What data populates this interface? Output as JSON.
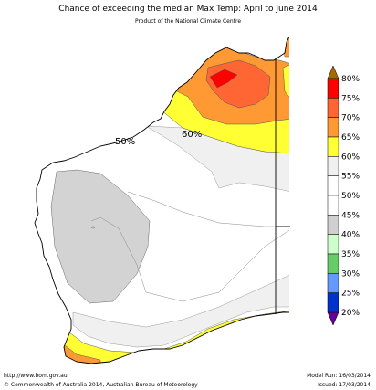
{
  "title": "Chance of exceeding the median Max Temp: April to June 2014",
  "subtitle": "Product of the National Climate Centre",
  "contour_labels": [
    "50%",
    "60%"
  ],
  "legend": {
    "bins": [
      {
        "label": "80%",
        "color": "#d90000"
      },
      {
        "label": "75%",
        "color": "#ff0000"
      },
      {
        "label": "70%",
        "color": "#ff6633"
      },
      {
        "label": "65%",
        "color": "#ff9933"
      },
      {
        "label": "60%",
        "color": "#ffff33"
      },
      {
        "label": "55%",
        "color": "#f0f0f0"
      },
      {
        "label": "50%",
        "color": "#ffffff"
      },
      {
        "label": "45%",
        "color": "#ffffff"
      },
      {
        "label": "40%",
        "color": "#d0d0d0"
      },
      {
        "label": "35%",
        "color": "#ccffcc"
      },
      {
        "label": "30%",
        "color": "#66cc66"
      },
      {
        "label": "25%",
        "color": "#6699ff"
      },
      {
        "label": "20%",
        "color": "#0033cc"
      }
    ],
    "top_arrow_color": "#aa6600",
    "bottom_arrow_color": "#660099"
  },
  "footer": {
    "url": "http://www.bom.gov.au",
    "copyright": "©  Commonwealth of Australia 2014, Australian Bureau of Meteorology",
    "model_run": "Model Run: 16/03/2014",
    "issued": "Issued: 17/03/2014"
  }
}
